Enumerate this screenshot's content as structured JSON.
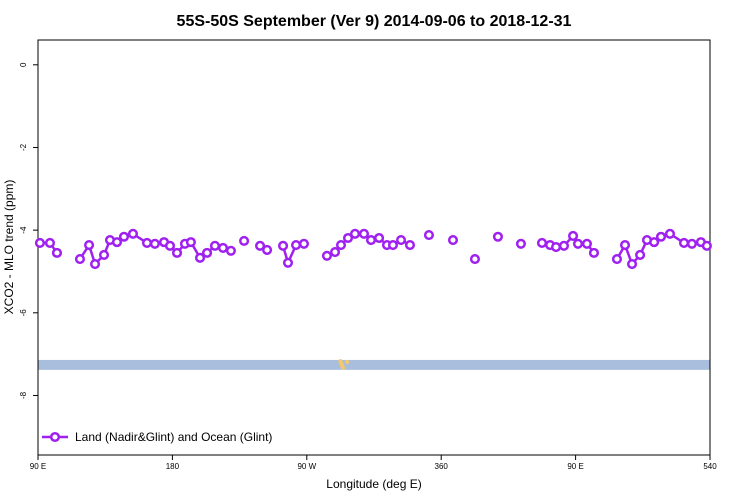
{
  "chart_data": {
    "type": "line",
    "title": "55S-50S September (Ver 9)   2014-09-06 to 2018-12-31",
    "x_label": "Longitude (deg E)",
    "y_label": "XCO2 - MLO trend (ppm)",
    "xlim": [
      90,
      540
    ],
    "ylim": [
      -9.44,
      0.6
    ],
    "xticks": [
      {
        "value": 90,
        "label": "90 E"
      },
      180,
      {
        "value": 270,
        "label": "90 W"
      },
      360,
      {
        "value": 450,
        "label": "90 E"
      },
      540
    ],
    "yticks": [
      0,
      -2,
      -4,
      -6,
      -8
    ],
    "legend": "bottom-left",
    "band": {
      "color": "#a9bedc",
      "range": [
        -7.38,
        -7.14
      ]
    },
    "scatter": {
      "color": "#f6c86c",
      "x": [
        292.5,
        293.0,
        293.4,
        293.8,
        294.2,
        297.0
      ],
      "y": [
        -7.17,
        -7.21,
        -7.25,
        -7.29,
        -7.33,
        -7.19
      ]
    },
    "series": [
      {
        "name": "Land (Nadir&Glint) and Ocean (Glint)",
        "color": "#a020f0",
        "x": [
          91.3,
          98.0,
          102.7,
          null,
          118.1,
          124.2,
          128.2,
          134.2,
          138.2,
          142.9,
          147.6,
          153.6,
          163.0,
          168.3,
          174.4,
          178.4,
          183.1,
          188.4,
          192.4,
          198.5,
          203.2,
          208.5,
          213.9,
          219.2,
          null,
          228.0,
          null,
          238.7,
          243.4,
          null,
          254.1,
          257.4,
          262.8,
          268.1,
          null,
          283.5,
          288.9,
          292.9,
          297.6,
          302.3,
          308.3,
          313.0,
          318.4,
          323.7,
          327.7,
          333.1,
          339.1,
          null,
          351.8,
          null,
          367.9,
          null,
          382.6,
          null,
          398.0,
          null,
          413.4,
          null,
          427.5,
          432.9,
          436.9,
          442.2,
          448.3,
          451.6,
          457.6,
          462.3,
          null,
          477.7,
          483.1,
          487.8,
          493.2,
          497.8,
          502.6,
          507.2,
          513.2,
          522.6,
          527.9,
          533.9,
          537.9
        ],
        "values": [
          -4.31,
          -4.31,
          -4.55,
          null,
          -4.7,
          -4.36,
          -4.82,
          -4.6,
          -4.24,
          -4.29,
          -4.16,
          -4.09,
          -4.31,
          -4.33,
          -4.29,
          -4.38,
          -4.55,
          -4.33,
          -4.29,
          -4.67,
          -4.55,
          -4.38,
          -4.43,
          -4.5,
          null,
          -4.26,
          null,
          -4.38,
          -4.48,
          null,
          -4.38,
          -4.79,
          -4.36,
          -4.33,
          null,
          -4.62,
          -4.53,
          -4.36,
          -4.19,
          -4.09,
          -4.09,
          -4.24,
          -4.19,
          -4.36,
          -4.36,
          -4.24,
          -4.36,
          null,
          -4.12,
          null,
          -4.24,
          null,
          -4.7,
          null,
          -4.16,
          null,
          -4.33,
          null,
          -4.31,
          -4.36,
          -4.41,
          -4.38,
          -4.14,
          -4.33,
          -4.33,
          -4.55,
          null,
          -4.7,
          -4.36,
          -4.82,
          -4.6,
          -4.24,
          -4.29,
          -4.16,
          -4.09,
          -4.31,
          -4.33,
          -4.29,
          -4.38
        ]
      }
    ]
  }
}
